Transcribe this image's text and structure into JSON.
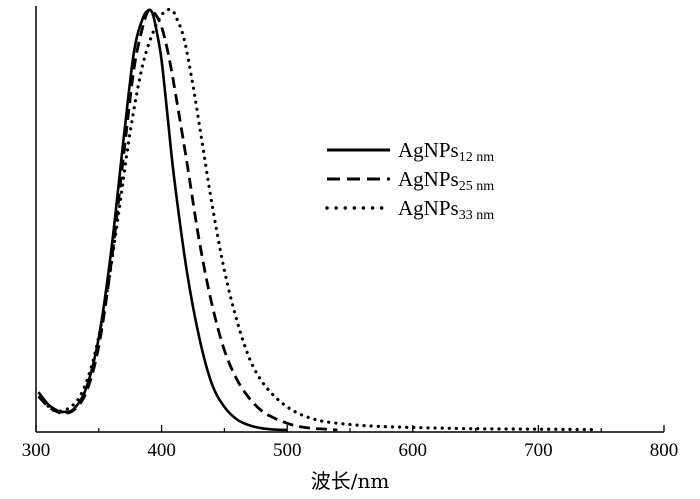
{
  "chart_data": {
    "type": "line",
    "title": "",
    "xlabel": "波长/nm",
    "ylabel": "",
    "xlim": [
      300,
      800
    ],
    "xticks": [
      300,
      400,
      500,
      600,
      700,
      800
    ],
    "y_ticks_shown": false,
    "grid": false,
    "legend_position": "upper-right",
    "series": [
      {
        "name": "AgNPs",
        "subscript": "12 nm",
        "style": "solid",
        "color": "#000000",
        "x": [
          302,
          310,
          318,
          322,
          330,
          340,
          350,
          360,
          370,
          378,
          385,
          390,
          393,
          396,
          400,
          405,
          410,
          420,
          430,
          440,
          450,
          460,
          470,
          480,
          490,
          500
        ],
        "y": [
          0.09,
          0.06,
          0.045,
          0.043,
          0.05,
          0.1,
          0.22,
          0.43,
          0.7,
          0.9,
          0.98,
          1.0,
          0.99,
          0.95,
          0.88,
          0.74,
          0.6,
          0.38,
          0.22,
          0.11,
          0.055,
          0.025,
          0.011,
          0.004,
          0.001,
          0.0
        ]
      },
      {
        "name": "AgNPs",
        "subscript": "25 nm",
        "style": "dashed",
        "color": "#000000",
        "x": [
          302,
          310,
          318,
          322,
          330,
          340,
          350,
          360,
          370,
          378,
          385,
          390,
          395,
          400,
          405,
          410,
          420,
          430,
          440,
          450,
          460,
          470,
          480,
          490,
          500,
          510,
          520,
          530,
          540
        ],
        "y": [
          0.08,
          0.055,
          0.042,
          0.04,
          0.047,
          0.09,
          0.2,
          0.4,
          0.66,
          0.86,
          0.96,
          1.0,
          0.99,
          0.96,
          0.9,
          0.82,
          0.64,
          0.45,
          0.3,
          0.19,
          0.12,
          0.075,
          0.045,
          0.028,
          0.016,
          0.008,
          0.004,
          0.002,
          0.0
        ]
      },
      {
        "name": "AgNPs",
        "subscript": "33 nm",
        "style": "dotted",
        "color": "#000000",
        "x": [
          306,
          312,
          318,
          325,
          335,
          345,
          355,
          365,
          375,
          385,
          395,
          402,
          408,
          412,
          418,
          425,
          432,
          440,
          450,
          460,
          470,
          480,
          490,
          500,
          510,
          520,
          530,
          550,
          570,
          600,
          650,
          700,
          745
        ],
        "y": [
          0.07,
          0.05,
          0.045,
          0.05,
          0.08,
          0.16,
          0.3,
          0.5,
          0.71,
          0.87,
          0.96,
          0.995,
          1.0,
          0.98,
          0.93,
          0.82,
          0.69,
          0.54,
          0.38,
          0.26,
          0.17,
          0.115,
          0.08,
          0.055,
          0.038,
          0.027,
          0.02,
          0.013,
          0.009,
          0.006,
          0.003,
          0.002,
          0.001
        ]
      }
    ]
  }
}
